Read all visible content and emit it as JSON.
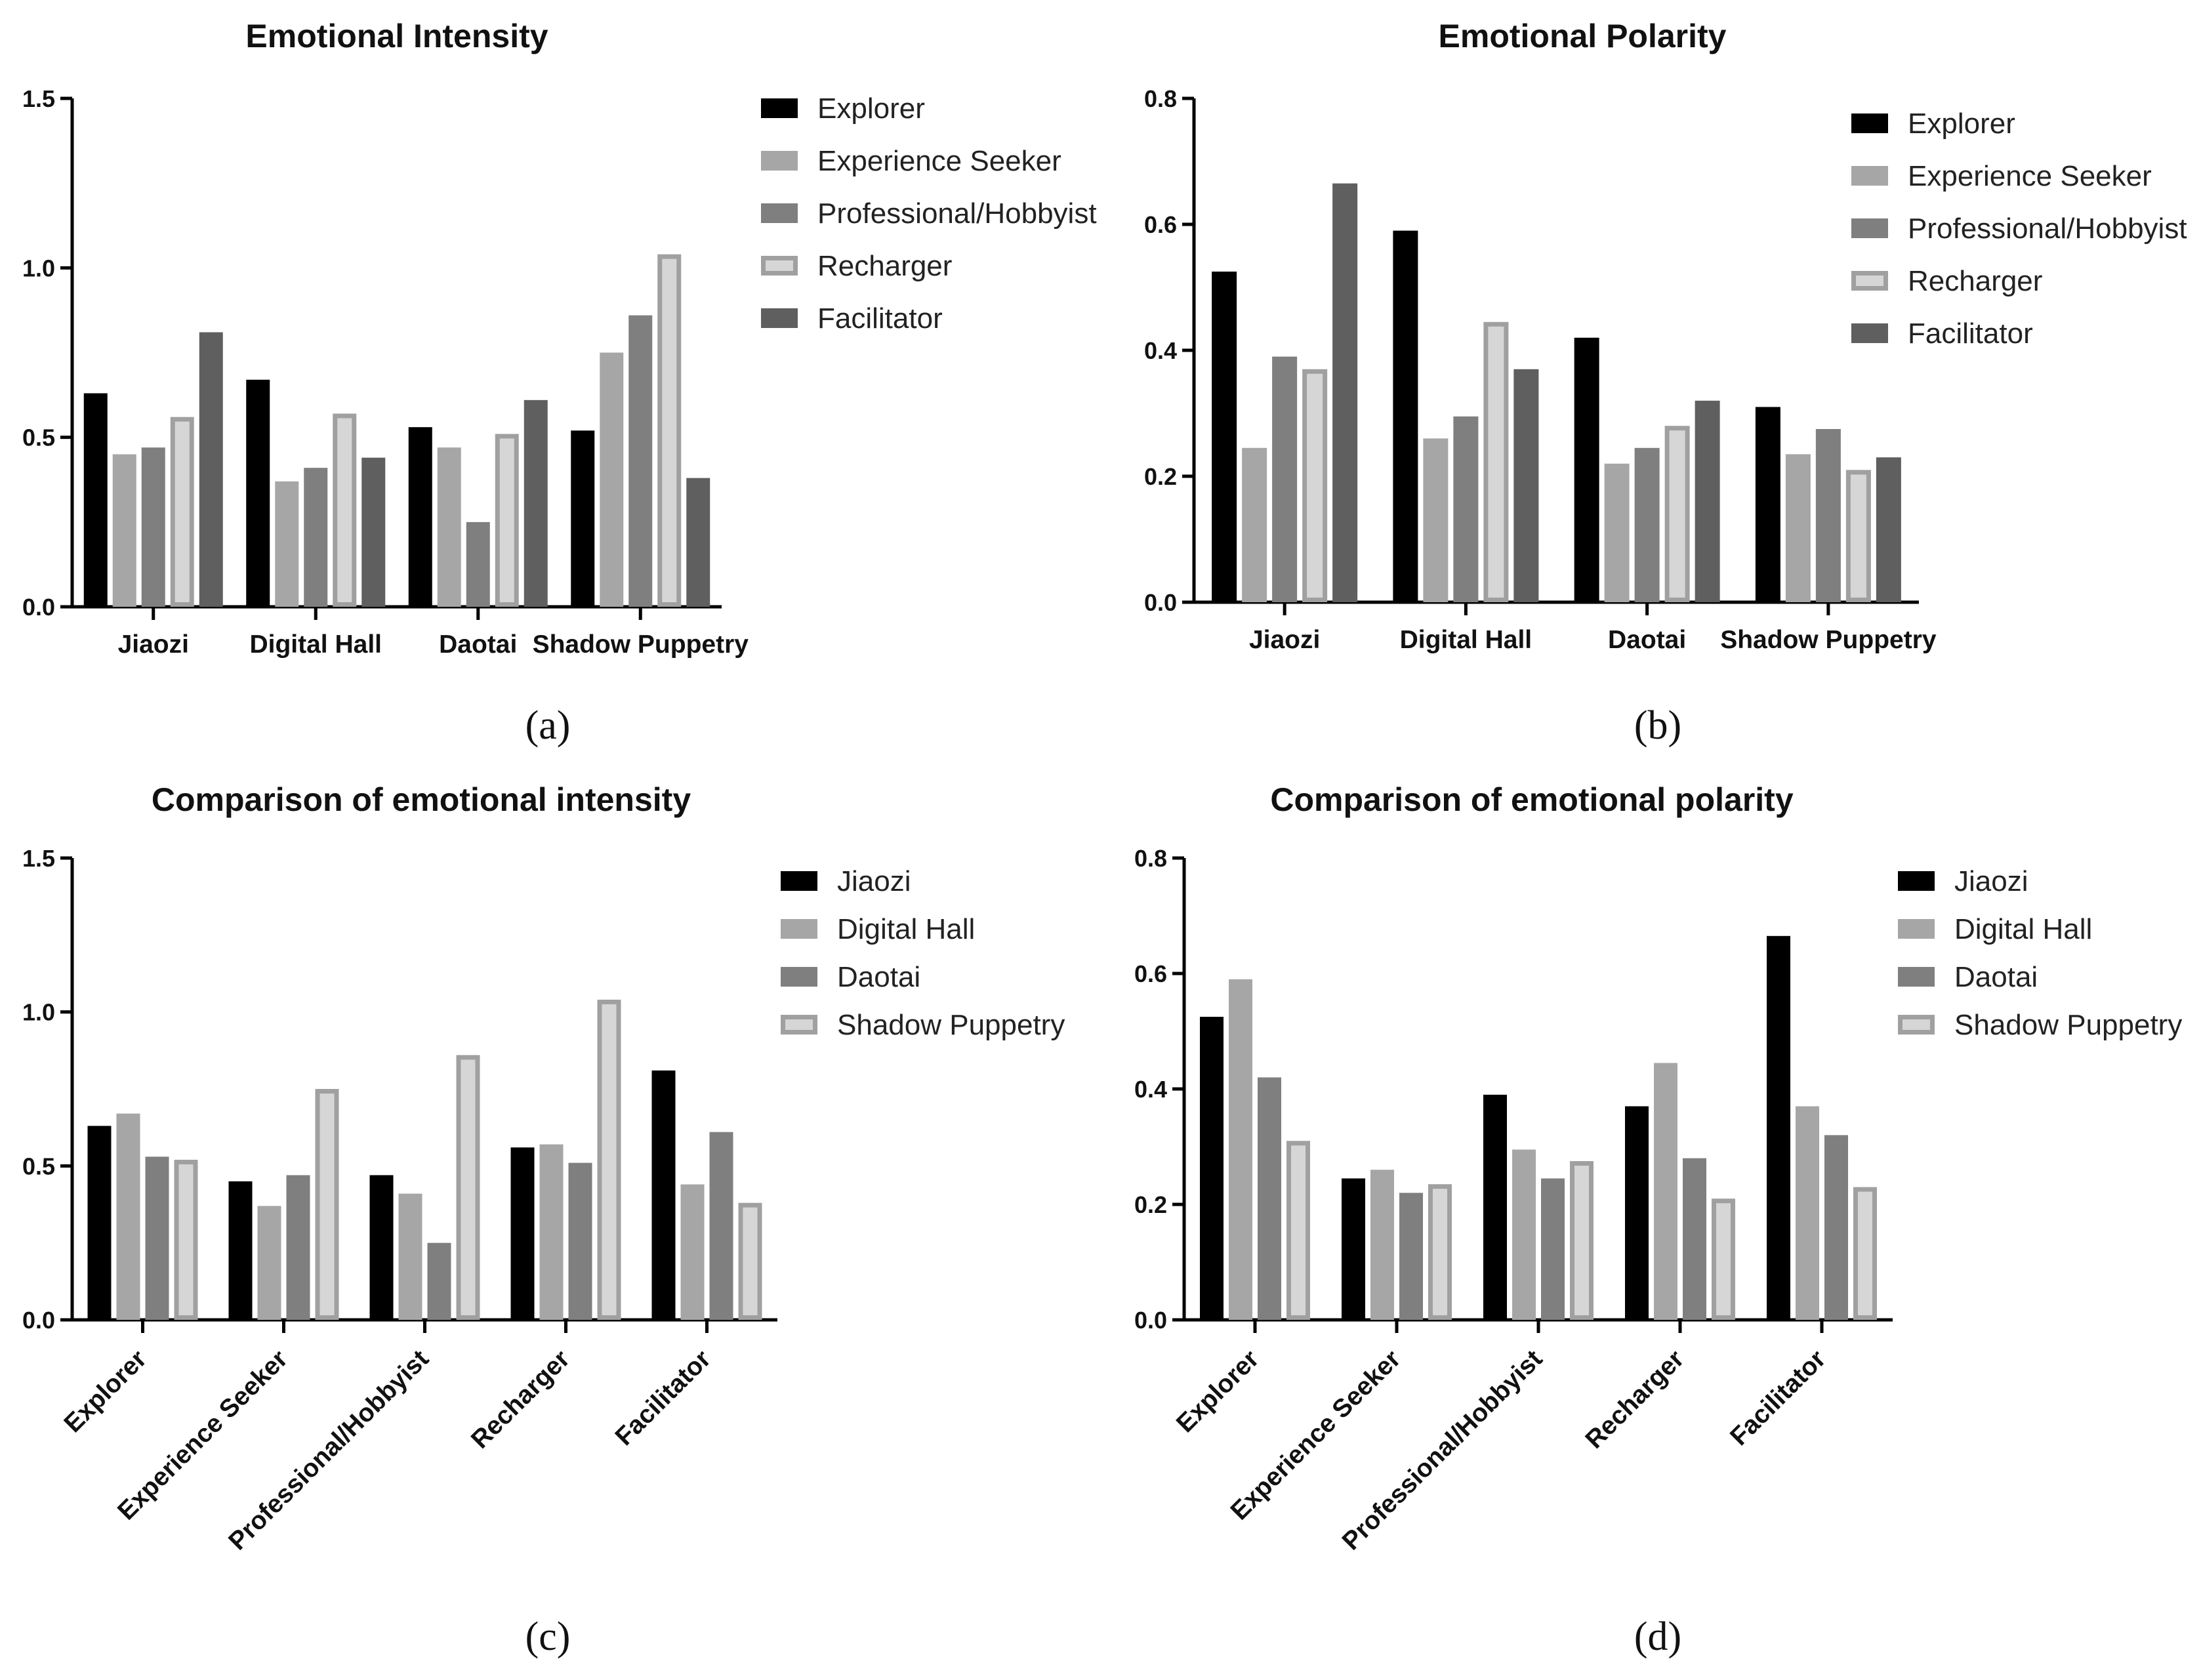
{
  "colors": {
    "black": "#000000",
    "lightgray": "#a6a6a6",
    "midgray": "#7f7f7f",
    "paler": "#d6d6d6",
    "paler_border": "#a0a0a0",
    "darkgray": "#5f5f5f"
  },
  "chart_data": [
    {
      "type": "bar",
      "panel": "(a)",
      "title": "Emotional Intensity",
      "xlabel": "",
      "ylabel": "",
      "ylim": [
        0,
        1.5
      ],
      "yticks": [
        "0.0",
        "0.5",
        "1.0",
        "1.5"
      ],
      "categories": [
        "Jiaozi",
        "Digital Hall",
        "Daotai",
        "Shadow Puppetry"
      ],
      "legend_position": "top-right",
      "series": [
        {
          "name": "Explorer",
          "values": [
            0.63,
            0.67,
            0.53,
            0.52
          ]
        },
        {
          "name": "Experience Seeker",
          "values": [
            0.45,
            0.37,
            0.47,
            0.75
          ]
        },
        {
          "name": "Professional/Hobbyist",
          "values": [
            0.47,
            0.41,
            0.25,
            0.86
          ]
        },
        {
          "name": "Recharger",
          "values": [
            0.56,
            0.57,
            0.51,
            1.04
          ]
        },
        {
          "name": "Facilitator",
          "values": [
            0.81,
            0.44,
            0.61,
            0.38
          ]
        }
      ]
    },
    {
      "type": "bar",
      "panel": "(b)",
      "title": "Emotional Polarity",
      "xlabel": "",
      "ylabel": "",
      "ylim": [
        0,
        0.8
      ],
      "yticks": [
        "0.0",
        "0.2",
        "0.4",
        "0.6",
        "0.8"
      ],
      "categories": [
        "Jiaozi",
        "Digital  Hall",
        "Daotai",
        "Shadow Puppetry"
      ],
      "legend_position": "top-right",
      "series": [
        {
          "name": "Explorer",
          "values": [
            0.525,
            0.59,
            0.42,
            0.31
          ]
        },
        {
          "name": "Experience Seeker",
          "values": [
            0.245,
            0.26,
            0.22,
            0.235
          ]
        },
        {
          "name": "Professional/Hobbyist",
          "values": [
            0.39,
            0.295,
            0.245,
            0.275
          ]
        },
        {
          "name": "Recharger",
          "values": [
            0.37,
            0.445,
            0.28,
            0.21
          ]
        },
        {
          "name": "Facilitator",
          "values": [
            0.665,
            0.37,
            0.32,
            0.23
          ]
        }
      ]
    },
    {
      "type": "bar",
      "panel": "(c)",
      "title": "Comparison of emotional intensity",
      "xlabel": "",
      "ylabel": "",
      "ylim": [
        0,
        1.5
      ],
      "yticks": [
        "0.0",
        "0.5",
        "1.0",
        "1.5"
      ],
      "categories": [
        "Explorer",
        "Experience Seeker",
        "Professional/Hobbyist",
        "Recharger",
        "Facilitator"
      ],
      "legend_position": "top-right",
      "series": [
        {
          "name": "Jiaozi",
          "values": [
            0.63,
            0.45,
            0.47,
            0.56,
            0.81
          ]
        },
        {
          "name": "Digital Hall",
          "values": [
            0.67,
            0.37,
            0.41,
            0.57,
            0.44
          ]
        },
        {
          "name": "Daotai",
          "values": [
            0.53,
            0.47,
            0.25,
            0.51,
            0.61
          ]
        },
        {
          "name": "Shadow Puppetry",
          "values": [
            0.52,
            0.75,
            0.86,
            1.04,
            0.38
          ]
        }
      ]
    },
    {
      "type": "bar",
      "panel": "(d)",
      "title": "Comparison of emotional polarity",
      "xlabel": "",
      "ylabel": "",
      "ylim": [
        0,
        0.8
      ],
      "yticks": [
        "0.0",
        "0.2",
        "0.4",
        "0.6",
        "0.8"
      ],
      "categories": [
        "Explorer",
        "Experience Seeker",
        "Professional/Hobbyist",
        "Recharger",
        "Facilitator"
      ],
      "legend_position": "top-right",
      "series": [
        {
          "name": "Jiaozi",
          "values": [
            0.525,
            0.245,
            0.39,
            0.37,
            0.665
          ]
        },
        {
          "name": "Digital Hall",
          "values": [
            0.59,
            0.26,
            0.295,
            0.445,
            0.37
          ]
        },
        {
          "name": "Daotai",
          "values": [
            0.42,
            0.22,
            0.245,
            0.28,
            0.32
          ]
        },
        {
          "name": "Shadow Puppetry",
          "values": [
            0.31,
            0.235,
            0.275,
            0.21,
            0.23
          ]
        }
      ]
    }
  ]
}
